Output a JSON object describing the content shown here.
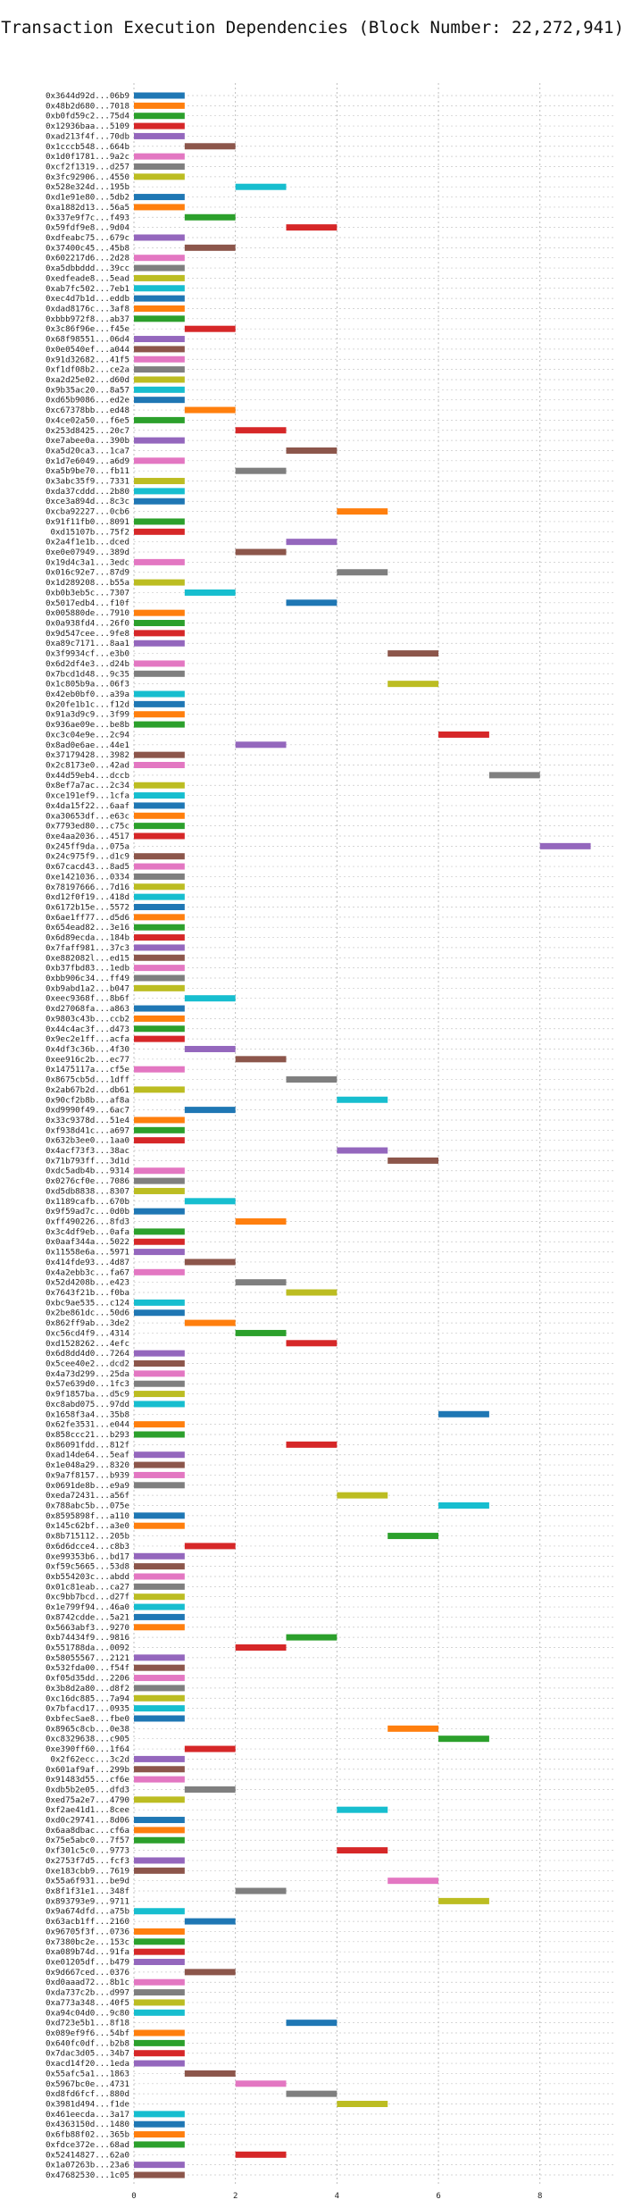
{
  "chart_data": {
    "type": "bar",
    "orientation": "horizontal",
    "title": "Transaction Execution Dependencies (Block Number: 22,272,941)",
    "xlabel": "",
    "ylabel": "",
    "xlim": [
      0,
      9.5
    ],
    "xticks": [
      0,
      2,
      4,
      6,
      8
    ],
    "grid": true,
    "palette": [
      "#1f77b4",
      "#ff7f0e",
      "#2ca02c",
      "#d62728",
      "#9467bd",
      "#8c564b",
      "#e377c2",
      "#7f7f7f",
      "#bcbd22",
      "#17becf"
    ],
    "rows": [
      {
        "tx": "0x3644d92d...06b9",
        "start": 0
      },
      {
        "tx": "0x48b2d680...7018",
        "start": 0
      },
      {
        "tx": "0xb0fd59c2...75d4",
        "start": 0
      },
      {
        "tx": "0x12936baa...5109",
        "start": 0
      },
      {
        "tx": "0xad213f4f...70db",
        "start": 0
      },
      {
        "tx": "0x1cccb548...664b",
        "start": 1
      },
      {
        "tx": "0x1d0f1781...9a2c",
        "start": 0
      },
      {
        "tx": "0xcf2f1319...d257",
        "start": 0
      },
      {
        "tx": "0x3fc92906...4550",
        "start": 0
      },
      {
        "tx": "0x528e324d...195b",
        "start": 2
      },
      {
        "tx": "0xd1e91e80...5db2",
        "start": 0
      },
      {
        "tx": "0xa1882d13...56a5",
        "start": 0
      },
      {
        "tx": "0x337e9f7c...f493",
        "start": 1
      },
      {
        "tx": "0x59fdf9e8...9d04",
        "start": 3
      },
      {
        "tx": "0xdfeabc75...679c",
        "start": 0
      },
      {
        "tx": "0x37400c45...45b8",
        "start": 1
      },
      {
        "tx": "0x602217d6...2d28",
        "start": 0
      },
      {
        "tx": "0xa5dbbddd...39cc",
        "start": 0
      },
      {
        "tx": "0xedfeade8...5ead",
        "start": 0
      },
      {
        "tx": "0xab7fc502...7eb1",
        "start": 0
      },
      {
        "tx": "0xec4d7b1d...eddb",
        "start": 0
      },
      {
        "tx": "0xdad8176c...3af8",
        "start": 0
      },
      {
        "tx": "0xbbb972f8...ab37",
        "start": 0
      },
      {
        "tx": "0x3c86f96e...f45e",
        "start": 1
      },
      {
        "tx": "0x68f98551...06d4",
        "start": 0
      },
      {
        "tx": "0x0e0540ef...a044",
        "start": 0
      },
      {
        "tx": "0x91d32682...41f5",
        "start": 0
      },
      {
        "tx": "0xf1df08b2...ce2a",
        "start": 0
      },
      {
        "tx": "0xa2d25e02...d60d",
        "start": 0
      },
      {
        "tx": "0x9b35ac20...8a57",
        "start": 0
      },
      {
        "tx": "0xd65b9086...ed2e",
        "start": 0
      },
      {
        "tx": "0xc67378bb...ed48",
        "start": 1
      },
      {
        "tx": "0x4ce02a50...f6e5",
        "start": 0
      },
      {
        "tx": "0x253d8425...20c7",
        "start": 2
      },
      {
        "tx": "0xe7abee0a...390b",
        "start": 0
      },
      {
        "tx": "0xa5d20ca3...1ca7",
        "start": 3
      },
      {
        "tx": "0x1d7e6049...a6d9",
        "start": 0
      },
      {
        "tx": "0xa5b9be70...fb11",
        "start": 2
      },
      {
        "tx": "0x3abc35f9...7331",
        "start": 0
      },
      {
        "tx": "0xda37cddd...2b80",
        "start": 0
      },
      {
        "tx": "0xce3a894d...8c3c",
        "start": 0
      },
      {
        "tx": "0xcba92227...0cb6",
        "start": 4
      },
      {
        "tx": "0x91f11fb0...8091",
        "start": 0
      },
      {
        "tx": "0xd15107b...75f2",
        "start": 0
      },
      {
        "tx": "0x2a4f1e1b...dced",
        "start": 3
      },
      {
        "tx": "0xe0e07949...389d",
        "start": 2
      },
      {
        "tx": "0x19d4c3a1...3edc",
        "start": 0
      },
      {
        "tx": "0x016c92e7...87d9",
        "start": 4
      },
      {
        "tx": "0x1d289208...b55a",
        "start": 0
      },
      {
        "tx": "0xb0b3eb5c...7307",
        "start": 1
      },
      {
        "tx": "0x5017edb4...f10f",
        "start": 3
      },
      {
        "tx": "0x005880de...7910",
        "start": 0
      },
      {
        "tx": "0x0a938fd4...26f0",
        "start": 0
      },
      {
        "tx": "0x9d547cee...9fe8",
        "start": 0
      },
      {
        "tx": "0xa89c7171...8aa1",
        "start": 0
      },
      {
        "tx": "0x3f9934cf...e3b0",
        "start": 5
      },
      {
        "tx": "0x6d2df4e3...d24b",
        "start": 0
      },
      {
        "tx": "0x7bcd1d48...9c35",
        "start": 0
      },
      {
        "tx": "0x1c805b9a...06f3",
        "start": 5
      },
      {
        "tx": "0x42eb0bf0...a39a",
        "start": 0
      },
      {
        "tx": "0x20fe1b1c...f12d",
        "start": 0
      },
      {
        "tx": "0x91a3d9c9...3f99",
        "start": 0
      },
      {
        "tx": "0x936ae09e...be8b",
        "start": 0
      },
      {
        "tx": "0xc3c04e9e...2c94",
        "start": 6
      },
      {
        "tx": "0x8ad0e6ae...44e1",
        "start": 2
      },
      {
        "tx": "0x37179428...3982",
        "start": 0
      },
      {
        "tx": "0x2c8173e0...42ad",
        "start": 0
      },
      {
        "tx": "0x44d59eb4...dccb",
        "start": 7
      },
      {
        "tx": "0x8ef7a7ac...2c34",
        "start": 0
      },
      {
        "tx": "0xce191ef9...1cfa",
        "start": 0
      },
      {
        "tx": "0x4da15f22...6aaf",
        "start": 0
      },
      {
        "tx": "0xa30653df...e63c",
        "start": 0
      },
      {
        "tx": "0x7793ed80...c75c",
        "start": 0
      },
      {
        "tx": "0xe4aa2036...4517",
        "start": 0
      },
      {
        "tx": "0x245ff9da...075a",
        "start": 8
      },
      {
        "tx": "0x24c975f9...d1c9",
        "start": 0
      },
      {
        "tx": "0x67cacd43...8ad5",
        "start": 0
      },
      {
        "tx": "0xe1421036...0334",
        "start": 0
      },
      {
        "tx": "0x78197666...7d16",
        "start": 0
      },
      {
        "tx": "0xd12f0f19...418d",
        "start": 0
      },
      {
        "tx": "0x6172b15e...5572",
        "start": 0
      },
      {
        "tx": "0x6ae1ff77...d5d6",
        "start": 0
      },
      {
        "tx": "0x654ead82...3e16",
        "start": 0
      },
      {
        "tx": "0x6d89ecda...184b",
        "start": 0
      },
      {
        "tx": "0x7faff981...37c3",
        "start": 0
      },
      {
        "tx": "0xe882082l...ed15",
        "start": 0
      },
      {
        "tx": "0xb37fbd83...1edb",
        "start": 0
      },
      {
        "tx": "0xbb906c34...ff49",
        "start": 0
      },
      {
        "tx": "0xb9abd1a2...b047",
        "start": 0
      },
      {
        "tx": "0xeec9368f...8b6f",
        "start": 1
      },
      {
        "tx": "0xd27068fa...a863",
        "start": 0
      },
      {
        "tx": "0x9803c43b...ccb2",
        "start": 0
      },
      {
        "tx": "0x44c4ac3f...d473",
        "start": 0
      },
      {
        "tx": "0x9ec2e1ff...acfa",
        "start": 0
      },
      {
        "tx": "0x4df3c36b...4f30",
        "start": 1
      },
      {
        "tx": "0xee916c2b...ec77",
        "start": 2
      },
      {
        "tx": "0x1475117a...cf5e",
        "start": 0
      },
      {
        "tx": "0x8675cb5d...1dff",
        "start": 3
      },
      {
        "tx": "0x2ab67b2d...db61",
        "start": 0
      },
      {
        "tx": "0x90cf2b8b...af8a",
        "start": 4
      },
      {
        "tx": "0xd9990f49...6ac7",
        "start": 1
      },
      {
        "tx": "0x33c9378d...51e4",
        "start": 0
      },
      {
        "tx": "0xf938d41c...a697",
        "start": 0
      },
      {
        "tx": "0x632b3ee0...1aa0",
        "start": 0
      },
      {
        "tx": "0x4acf73f3...38ac",
        "start": 4
      },
      {
        "tx": "0x71b793ff...3d1d",
        "start": 5
      },
      {
        "tx": "0xdc5adb4b...9314",
        "start": 0
      },
      {
        "tx": "0x0276cf0e...7086",
        "start": 0
      },
      {
        "tx": "0xd5db8838...8307",
        "start": 0
      },
      {
        "tx": "0x1189cafb...670b",
        "start": 1
      },
      {
        "tx": "0x9f59ad7c...0d0b",
        "start": 0
      },
      {
        "tx": "0xff490226...8fd3",
        "start": 2
      },
      {
        "tx": "0x3c4df9eb...0afa",
        "start": 0
      },
      {
        "tx": "0x0aaf344a...5022",
        "start": 0
      },
      {
        "tx": "0x11558e6a...5971",
        "start": 0
      },
      {
        "tx": "0x414fde93...4d87",
        "start": 1
      },
      {
        "tx": "0x4a2ebb3c...fa67",
        "start": 0
      },
      {
        "tx": "0x52d4208b...e423",
        "start": 2
      },
      {
        "tx": "0x7643f21b...f0ba",
        "start": 3
      },
      {
        "tx": "0xbc9ae535...c124",
        "start": 0
      },
      {
        "tx": "0x2be861dc...50d6",
        "start": 0
      },
      {
        "tx": "0x862ff9ab...3de2",
        "start": 1
      },
      {
        "tx": "0xc56cd4f9...4314",
        "start": 2
      },
      {
        "tx": "0xd1528262...4efc",
        "start": 3
      },
      {
        "tx": "0x6d8dd4d0...7264",
        "start": 0
      },
      {
        "tx": "0x5cee40e2...dcd2",
        "start": 0
      },
      {
        "tx": "0x4a73d299...25da",
        "start": 0
      },
      {
        "tx": "0x57e639d0...1fc3",
        "start": 0
      },
      {
        "tx": "0x9f1857ba...d5c9",
        "start": 0
      },
      {
        "tx": "0xc8abd075...97dd",
        "start": 0
      },
      {
        "tx": "0x1658f3a4...35b8",
        "start": 6
      },
      {
        "tx": "0x62fe3531...e044",
        "start": 0
      },
      {
        "tx": "0x858ccc21...b293",
        "start": 0
      },
      {
        "tx": "0x86091fdd...812f",
        "start": 3
      },
      {
        "tx": "0xad14de64...5eaf",
        "start": 0
      },
      {
        "tx": "0x1e048a29...8320",
        "start": 0
      },
      {
        "tx": "0x9a7f8157...b939",
        "start": 0
      },
      {
        "tx": "0x0691de8b...e9a9",
        "start": 0
      },
      {
        "tx": "0xeda72431...a56f",
        "start": 4
      },
      {
        "tx": "0x788abc5b...075e",
        "start": 6
      },
      {
        "tx": "0x8595898f...a110",
        "start": 0
      },
      {
        "tx": "0x145c62bf...a3e0",
        "start": 0
      },
      {
        "tx": "0x8b715112...205b",
        "start": 5
      },
      {
        "tx": "0x6d6dcce4...c8b3",
        "start": 1
      },
      {
        "tx": "0xe99353b6...bd17",
        "start": 0
      },
      {
        "tx": "0xf59c5665...53d8",
        "start": 0
      },
      {
        "tx": "0xb554203c...abdd",
        "start": 0
      },
      {
        "tx": "0x01c81eab...ca27",
        "start": 0
      },
      {
        "tx": "0xc9bb7bcd...d27f",
        "start": 0
      },
      {
        "tx": "0x1e799f94...46a0",
        "start": 0
      },
      {
        "tx": "0x8742cdde...5a21",
        "start": 0
      },
      {
        "tx": "0x5663abf3...9270",
        "start": 0
      },
      {
        "tx": "0xb74434f9...9816",
        "start": 3
      },
      {
        "tx": "0x551788da...0092",
        "start": 2
      },
      {
        "tx": "0x58055567...2121",
        "start": 0
      },
      {
        "tx": "0x532fda00...f54f",
        "start": 0
      },
      {
        "tx": "0xf05d35dd...2206",
        "start": 0
      },
      {
        "tx": "0x3b8d2a80...d8f2",
        "start": 0
      },
      {
        "tx": "0xc16dc885...7a94",
        "start": 0
      },
      {
        "tx": "0x7bfacd17...0935",
        "start": 0
      },
      {
        "tx": "0xbfecSae8...fbe0",
        "start": 0
      },
      {
        "tx": "0x8965c8cb...0e38",
        "start": 5
      },
      {
        "tx": "0xc8329638...c905",
        "start": 6
      },
      {
        "tx": "0xe390ff60...1f64",
        "start": 1
      },
      {
        "tx": "0x2f62ecc...3c2d",
        "start": 0
      },
      {
        "tx": "0x601af9af...299b",
        "start": 0
      },
      {
        "tx": "0x91483d55...cf6e",
        "start": 0
      },
      {
        "tx": "0xdb5b2e05...dfd3",
        "start": 1
      },
      {
        "tx": "0xed75a2e7...4790",
        "start": 0
      },
      {
        "tx": "0xf2ae41d1...8cee",
        "start": 4
      },
      {
        "tx": "0xd0c29741...8d06",
        "start": 0
      },
      {
        "tx": "0x6aa8dbac...cf6a",
        "start": 0
      },
      {
        "tx": "0x75e5abc0...7f57",
        "start": 0
      },
      {
        "tx": "0xf301c5c0...9773",
        "start": 4
      },
      {
        "tx": "0x2753f7d5...fcf3",
        "start": 0
      },
      {
        "tx": "0xe183cbb9...7619",
        "start": 0
      },
      {
        "tx": "0x55a6f931...be9d",
        "start": 5
      },
      {
        "tx": "0x8f1f31e1...348f",
        "start": 2
      },
      {
        "tx": "0x893793e9...9711",
        "start": 6
      },
      {
        "tx": "0x9a674dfd...a75b",
        "start": 0
      },
      {
        "tx": "0x63acb1ff...2160",
        "start": 1
      },
      {
        "tx": "0x96705f3f...0736",
        "start": 0
      },
      {
        "tx": "0x7380bc2e...153c",
        "start": 0
      },
      {
        "tx": "0xa089b74d...91fa",
        "start": 0
      },
      {
        "tx": "0xe01205df...b479",
        "start": 0
      },
      {
        "tx": "0x9d667ced...0376",
        "start": 1
      },
      {
        "tx": "0xd0aaad72...8b1c",
        "start": 0
      },
      {
        "tx": "0xda737c2b...d997",
        "start": 0
      },
      {
        "tx": "0xa773a348...40f5",
        "start": 0
      },
      {
        "tx": "0xa94c04d0...9c80",
        "start": 0
      },
      {
        "tx": "0xd723e5b1...8f18",
        "start": 3
      },
      {
        "tx": "0x089ef9f6...54bf",
        "start": 0
      },
      {
        "tx": "0x640fc0df...b2b8",
        "start": 0
      },
      {
        "tx": "0x7dac3d05...34b7",
        "start": 0
      },
      {
        "tx": "0xacd14f20...1eda",
        "start": 0
      },
      {
        "tx": "0x55afc5a1...1863",
        "start": 1
      },
      {
        "tx": "0x5967bc0e...4731",
        "start": 2
      },
      {
        "tx": "0xd8fd6fcf...880d",
        "start": 3
      },
      {
        "tx": "0x3981d494...f1de",
        "start": 4
      },
      {
        "tx": "0x461eecda...3a17",
        "start": 0
      },
      {
        "tx": "0x4363150d...1480",
        "start": 0
      },
      {
        "tx": "0x6fb88f02...365b",
        "start": 0
      },
      {
        "tx": "0xfdce372e...68ad",
        "start": 0
      },
      {
        "tx": "0x52414827...62a0",
        "start": 2
      },
      {
        "tx": "0x1a07263b...23a6",
        "start": 0
      },
      {
        "tx": "0x47682530...1c05",
        "start": 0
      }
    ]
  }
}
